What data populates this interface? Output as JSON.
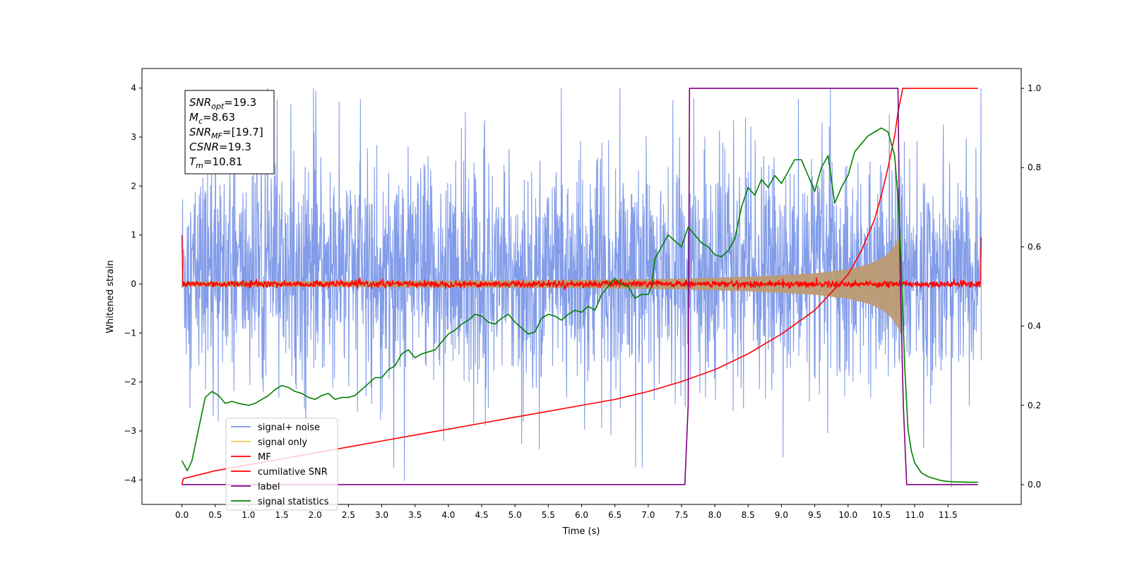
{
  "chart_data": {
    "type": "line",
    "xlabel": "Time (s)",
    "ylabel": "Whitened strain",
    "xlim": [
      -0.6,
      12.6
    ],
    "ylim": [
      -4.5,
      4.4
    ],
    "y2lim": [
      -0.05,
      1.05
    ],
    "x_ticks": [
      0.0,
      0.5,
      1.0,
      1.5,
      2.0,
      2.5,
      3.0,
      3.5,
      4.0,
      4.5,
      5.0,
      5.5,
      6.0,
      6.5,
      7.0,
      7.5,
      8.0,
      8.5,
      9.0,
      9.5,
      10.0,
      10.5,
      11.0,
      11.5
    ],
    "x_tick_labels": [
      "0.0",
      "0.5",
      "1.0",
      "1.5",
      "2.0",
      "2.5",
      "3.0",
      "3.5",
      "4.0",
      "4.5",
      "5.0",
      "5.5",
      "6.0",
      "6.5",
      "7.0",
      "7.5",
      "8.0",
      "8.5",
      "9.0",
      "9.5",
      "10.0",
      "10.5",
      "11.0",
      "11.5"
    ],
    "y_ticks": [
      4,
      3,
      2,
      1,
      0,
      -1,
      -2,
      -3,
      -4
    ],
    "y_tick_labels": [
      "4",
      "3",
      "2",
      "1",
      "0",
      "−1",
      "−2",
      "−3",
      "−4"
    ],
    "y2_ticks": [
      1.0,
      0.8,
      0.6,
      0.4,
      0.2,
      0.0
    ],
    "y2_tick_labels": [
      "1.0",
      "0.8",
      "0.6",
      "0.4",
      "0.2",
      "0.0"
    ],
    "grid": false,
    "legend_position": "lower-left",
    "annotation_lines": [
      {
        "main": "SNR",
        "sub": "opt",
        "rest": "=19.3"
      },
      {
        "main": "M",
        "sub": "c",
        "rest": "=8.63"
      },
      {
        "main": "SNR",
        "sub": "MF",
        "rest": "=[19.7]"
      },
      {
        "main": "CSNR",
        "sub": "",
        "rest": "=19.3"
      },
      {
        "main": "T",
        "sub": "m",
        "rest": "=10.81"
      }
    ],
    "series": [
      {
        "name": "signal+ noise",
        "color": "#7b97e8",
        "axis": "left",
        "style": "dense-noise",
        "x_range": [
          0.0,
          12.0
        ],
        "core_amplitude": [
          -1.0,
          1.5
        ],
        "peak_max": 4.0,
        "peak_min": -4.15
      },
      {
        "name": "signal only",
        "color": "#f5c55f",
        "axis": "left",
        "style": "chirp-envelope",
        "fill_color": "#bd9b73",
        "envelope_x": [
          0.0,
          1.0,
          2.0,
          3.0,
          4.0,
          5.0,
          6.0,
          7.0,
          7.5,
          8.0,
          8.5,
          9.0,
          9.5,
          10.0,
          10.3,
          10.5,
          10.6,
          10.7,
          10.75,
          10.81
        ],
        "envelope_y": [
          0.05,
          0.055,
          0.06,
          0.065,
          0.07,
          0.075,
          0.085,
          0.1,
          0.11,
          0.13,
          0.15,
          0.18,
          0.22,
          0.3,
          0.4,
          0.52,
          0.62,
          0.78,
          0.9,
          1.05
        ]
      },
      {
        "name": "MF",
        "color": "#ff0000",
        "axis": "left",
        "style": "flat-noise",
        "x_range": [
          0.0,
          12.0
        ],
        "amplitude": 0.1,
        "start_value": 1.0,
        "end_value": 0.95
      },
      {
        "name": "cumilative SNR",
        "color": "#ff0000",
        "axis": "right",
        "x": [
          0.0,
          0.02,
          0.5,
          1.0,
          1.5,
          2.0,
          2.5,
          3.0,
          3.5,
          4.0,
          4.5,
          5.0,
          5.5,
          6.0,
          6.5,
          7.0,
          7.5,
          8.0,
          8.5,
          9.0,
          9.5,
          10.0,
          10.2,
          10.4,
          10.5,
          10.6,
          10.7,
          10.75,
          10.81,
          10.82,
          11.95
        ],
        "y": [
          0.0,
          0.015,
          0.035,
          0.05,
          0.065,
          0.08,
          0.095,
          0.11,
          0.125,
          0.14,
          0.155,
          0.17,
          0.185,
          0.2,
          0.215,
          0.235,
          0.26,
          0.29,
          0.33,
          0.38,
          0.44,
          0.53,
          0.59,
          0.67,
          0.73,
          0.8,
          0.88,
          0.94,
          0.99,
          1.0,
          1.0
        ]
      },
      {
        "name": "label",
        "color": "#800080",
        "axis": "right",
        "x": [
          0.0,
          7.55,
          7.6,
          7.62,
          10.75,
          10.78,
          10.83,
          10.88,
          11.95
        ],
        "y": [
          0.0,
          0.0,
          0.2,
          1.0,
          1.0,
          0.55,
          0.2,
          0.0,
          0.0
        ]
      },
      {
        "name": "signal statistics",
        "color": "#008000",
        "axis": "right",
        "x": [
          0.0,
          0.08,
          0.15,
          0.25,
          0.35,
          0.45,
          0.55,
          0.65,
          0.75,
          0.85,
          1.0,
          1.1,
          1.2,
          1.3,
          1.4,
          1.5,
          1.6,
          1.7,
          1.8,
          1.9,
          2.0,
          2.1,
          2.2,
          2.3,
          2.4,
          2.5,
          2.6,
          2.7,
          2.8,
          2.9,
          3.0,
          3.1,
          3.2,
          3.3,
          3.4,
          3.5,
          3.6,
          3.7,
          3.8,
          3.9,
          4.0,
          4.1,
          4.2,
          4.3,
          4.4,
          4.5,
          4.6,
          4.7,
          4.8,
          4.9,
          5.0,
          5.1,
          5.2,
          5.3,
          5.4,
          5.5,
          5.6,
          5.7,
          5.8,
          5.9,
          6.0,
          6.1,
          6.2,
          6.3,
          6.4,
          6.5,
          6.6,
          6.7,
          6.8,
          6.9,
          7.0,
          7.05,
          7.1,
          7.2,
          7.3,
          7.4,
          7.5,
          7.6,
          7.7,
          7.8,
          7.9,
          8.0,
          8.1,
          8.2,
          8.3,
          8.4,
          8.5,
          8.6,
          8.7,
          8.8,
          8.9,
          9.0,
          9.1,
          9.2,
          9.3,
          9.4,
          9.5,
          9.6,
          9.7,
          9.8,
          9.9,
          10.0,
          10.1,
          10.2,
          10.3,
          10.4,
          10.5,
          10.6,
          10.65,
          10.7,
          10.75,
          10.8,
          10.85,
          10.9,
          10.95,
          11.0,
          11.1,
          11.2,
          11.3,
          11.4,
          11.5,
          11.6,
          11.8,
          11.95
        ],
        "y": [
          0.06,
          0.035,
          0.06,
          0.14,
          0.22,
          0.235,
          0.225,
          0.205,
          0.21,
          0.205,
          0.2,
          0.205,
          0.215,
          0.225,
          0.24,
          0.25,
          0.245,
          0.235,
          0.23,
          0.22,
          0.215,
          0.225,
          0.23,
          0.215,
          0.22,
          0.22,
          0.225,
          0.24,
          0.255,
          0.27,
          0.27,
          0.29,
          0.3,
          0.33,
          0.34,
          0.32,
          0.33,
          0.335,
          0.34,
          0.36,
          0.38,
          0.39,
          0.405,
          0.415,
          0.43,
          0.425,
          0.41,
          0.405,
          0.42,
          0.43,
          0.41,
          0.395,
          0.38,
          0.385,
          0.42,
          0.43,
          0.425,
          0.415,
          0.43,
          0.44,
          0.435,
          0.45,
          0.44,
          0.48,
          0.5,
          0.52,
          0.505,
          0.5,
          0.47,
          0.48,
          0.48,
          0.5,
          0.57,
          0.6,
          0.63,
          0.615,
          0.6,
          0.65,
          0.63,
          0.61,
          0.6,
          0.58,
          0.575,
          0.59,
          0.62,
          0.7,
          0.75,
          0.73,
          0.77,
          0.75,
          0.78,
          0.76,
          0.79,
          0.82,
          0.82,
          0.78,
          0.74,
          0.8,
          0.83,
          0.71,
          0.75,
          0.78,
          0.84,
          0.86,
          0.88,
          0.89,
          0.9,
          0.89,
          0.86,
          0.83,
          0.72,
          0.55,
          0.3,
          0.14,
          0.085,
          0.055,
          0.03,
          0.02,
          0.015,
          0.01,
          0.008,
          0.007,
          0.006,
          0.006
        ]
      }
    ]
  }
}
